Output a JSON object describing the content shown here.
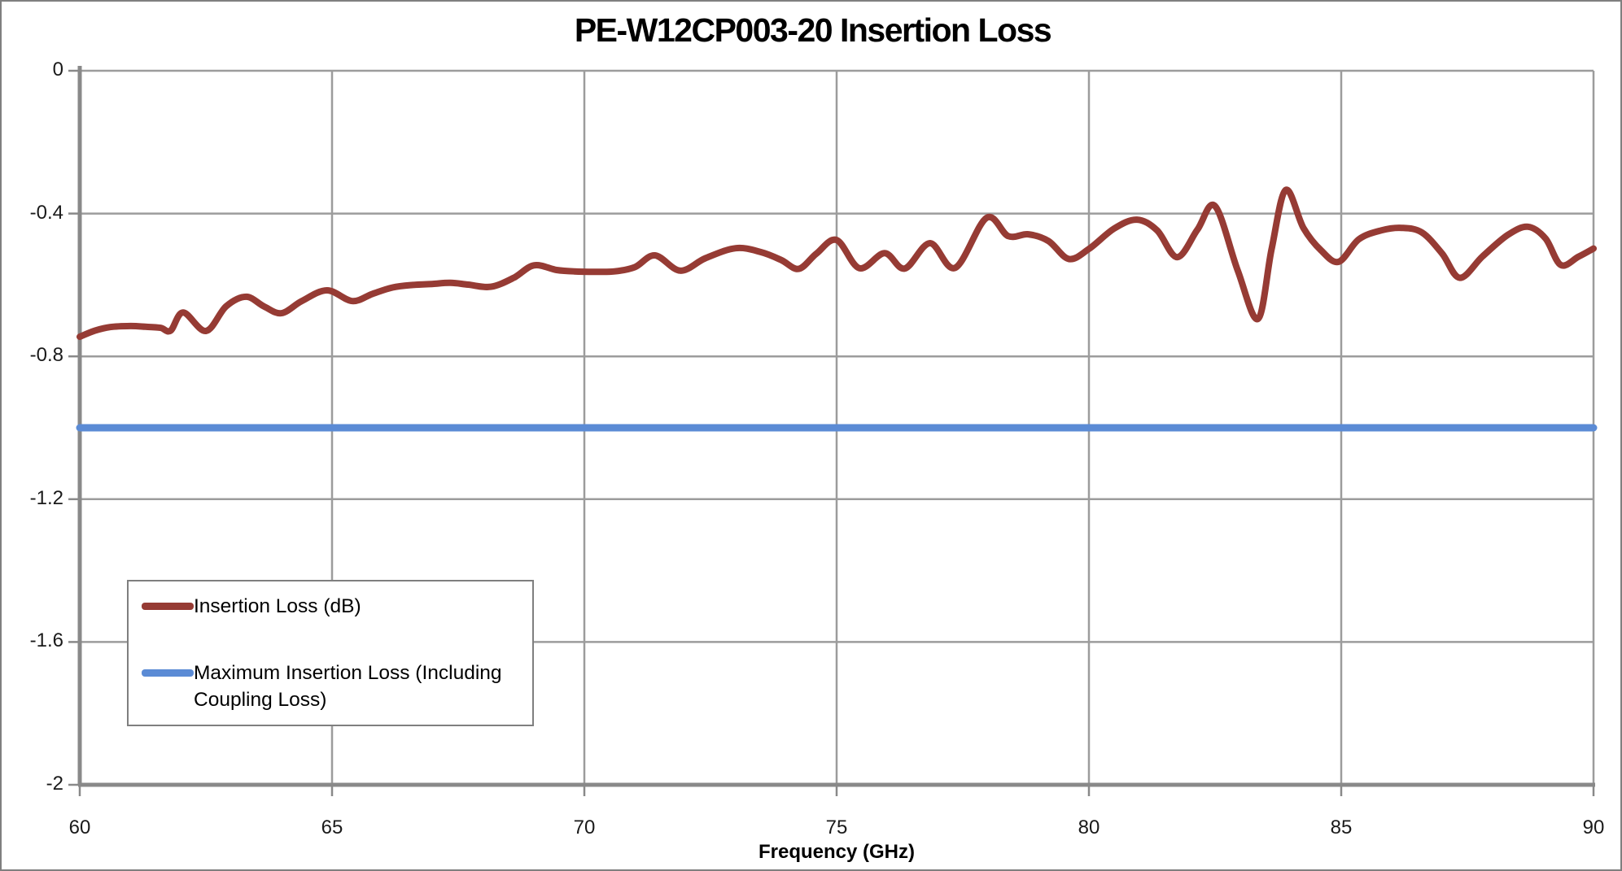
{
  "title": "PE-W12CP003-20 Insertion Loss",
  "colors": {
    "series_red": "#963B34",
    "series_blue": "#5B8BD5",
    "gridline": "#9C9C9C",
    "axis": "#898989",
    "border": "#7F7F7F"
  },
  "legend": {
    "items": [
      {
        "label": "Insertion Loss (dB)",
        "color": "#963B34"
      },
      {
        "label": "Maximum Insertion Loss (Including Coupling Loss)",
        "color": "#5B8BD5"
      }
    ]
  },
  "chart_data": {
    "type": "line",
    "title": "PE-W12CP003-20 Insertion Loss",
    "xlabel": "Frequency (GHz)",
    "ylabel": "",
    "xlim": [
      60,
      90
    ],
    "ylim": [
      -2,
      0
    ],
    "x_ticks": [
      60,
      65,
      70,
      75,
      80,
      85,
      90
    ],
    "y_ticks": [
      0,
      -0.4,
      -0.8,
      -1.2,
      -1.6,
      -2
    ],
    "y_tick_labels": [
      "0",
      "-0.4",
      "-0.8",
      "-1.2",
      "-1.6",
      "-2"
    ],
    "grid": true,
    "legend_position": "inside bottom-left",
    "series": [
      {
        "name": "Insertion Loss (dB)",
        "color": "#963B34",
        "smooth": true,
        "points": [
          [
            60.0,
            -0.745
          ],
          [
            60.3,
            -0.728
          ],
          [
            60.6,
            -0.718
          ],
          [
            61.0,
            -0.715
          ],
          [
            61.3,
            -0.717
          ],
          [
            61.6,
            -0.72
          ],
          [
            61.8,
            -0.728
          ],
          [
            62.05,
            -0.677
          ],
          [
            62.5,
            -0.729
          ],
          [
            62.9,
            -0.66
          ],
          [
            63.3,
            -0.633
          ],
          [
            63.65,
            -0.66
          ],
          [
            64.0,
            -0.679
          ],
          [
            64.4,
            -0.645
          ],
          [
            64.9,
            -0.615
          ],
          [
            65.4,
            -0.645
          ],
          [
            65.8,
            -0.625
          ],
          [
            66.2,
            -0.607
          ],
          [
            66.6,
            -0.6
          ],
          [
            67.0,
            -0.597
          ],
          [
            67.35,
            -0.594
          ],
          [
            67.7,
            -0.599
          ],
          [
            68.15,
            -0.605
          ],
          [
            68.6,
            -0.58
          ],
          [
            69.0,
            -0.545
          ],
          [
            69.45,
            -0.558
          ],
          [
            69.8,
            -0.562
          ],
          [
            70.2,
            -0.563
          ],
          [
            70.6,
            -0.562
          ],
          [
            71.0,
            -0.55
          ],
          [
            71.4,
            -0.517
          ],
          [
            71.9,
            -0.56
          ],
          [
            72.4,
            -0.525
          ],
          [
            73.0,
            -0.497
          ],
          [
            73.5,
            -0.508
          ],
          [
            73.9,
            -0.53
          ],
          [
            74.25,
            -0.555
          ],
          [
            74.6,
            -0.512
          ],
          [
            75.0,
            -0.474
          ],
          [
            75.45,
            -0.553
          ],
          [
            75.95,
            -0.511
          ],
          [
            76.35,
            -0.554
          ],
          [
            76.85,
            -0.483
          ],
          [
            77.35,
            -0.552
          ],
          [
            77.97,
            -0.412
          ],
          [
            78.4,
            -0.463
          ],
          [
            78.8,
            -0.458
          ],
          [
            79.2,
            -0.477
          ],
          [
            79.6,
            -0.527
          ],
          [
            80.0,
            -0.499
          ],
          [
            80.5,
            -0.442
          ],
          [
            80.95,
            -0.417
          ],
          [
            81.35,
            -0.447
          ],
          [
            81.75,
            -0.522
          ],
          [
            82.15,
            -0.445
          ],
          [
            82.5,
            -0.379
          ],
          [
            82.95,
            -0.56
          ],
          [
            83.35,
            -0.695
          ],
          [
            83.62,
            -0.5
          ],
          [
            83.9,
            -0.334
          ],
          [
            84.25,
            -0.44
          ],
          [
            84.6,
            -0.503
          ],
          [
            84.95,
            -0.535
          ],
          [
            85.35,
            -0.472
          ],
          [
            85.8,
            -0.447
          ],
          [
            86.2,
            -0.44
          ],
          [
            86.6,
            -0.453
          ],
          [
            87.0,
            -0.512
          ],
          [
            87.35,
            -0.58
          ],
          [
            87.8,
            -0.52
          ],
          [
            88.3,
            -0.46
          ],
          [
            88.7,
            -0.437
          ],
          [
            89.05,
            -0.47
          ],
          [
            89.35,
            -0.544
          ],
          [
            89.7,
            -0.521
          ],
          [
            90.0,
            -0.498
          ]
        ]
      },
      {
        "name": "Maximum Insertion Loss (Including Coupling Loss)",
        "color": "#5B8BD5",
        "smooth": false,
        "points": [
          [
            60.0,
            -1.0
          ],
          [
            90.0,
            -1.0
          ]
        ]
      }
    ]
  }
}
